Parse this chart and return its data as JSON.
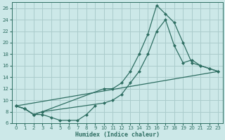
{
  "xlabel": "Humidex (Indice chaleur)",
  "bg_color": "#cce8e8",
  "grid_color": "#aacccc",
  "line_color": "#2e6e62",
  "xlim": [
    -0.5,
    23.5
  ],
  "ylim": [
    6,
    27
  ],
  "xticks": [
    0,
    1,
    2,
    3,
    4,
    5,
    6,
    7,
    8,
    9,
    10,
    11,
    12,
    13,
    14,
    15,
    16,
    17,
    18,
    19,
    20,
    21,
    22,
    23
  ],
  "yticks": [
    6,
    8,
    10,
    12,
    14,
    16,
    18,
    20,
    22,
    24,
    26
  ],
  "curve_spike_x": [
    0,
    1,
    2,
    3,
    10,
    11,
    12,
    13,
    14,
    15,
    16,
    17,
    18,
    19,
    20,
    21,
    22,
    23
  ],
  "curve_spike_y": [
    9,
    8.5,
    7.5,
    8,
    12,
    12,
    13,
    15,
    18,
    21.5,
    26.5,
    25,
    23.5,
    20,
    16.5,
    16,
    15.5,
    15
  ],
  "curve_mid_x": [
    0,
    1,
    2,
    3,
    10,
    11,
    12,
    13,
    14,
    15,
    16,
    17,
    18,
    19,
    20,
    21,
    22,
    23
  ],
  "curve_mid_y": [
    9,
    8.5,
    7.5,
    8,
    9.5,
    10,
    11,
    13,
    15,
    18,
    22,
    24,
    19.5,
    16.5,
    17,
    16,
    15.5,
    15
  ],
  "curve_line_x": [
    0,
    23
  ],
  "curve_line_y": [
    9,
    15
  ],
  "curve_dip_x": [
    0,
    1,
    2,
    3,
    4,
    5,
    6,
    7,
    8,
    9
  ],
  "curve_dip_y": [
    9,
    8.5,
    7.5,
    7.5,
    7,
    6.5,
    6.5,
    6.5,
    7.5,
    9
  ]
}
